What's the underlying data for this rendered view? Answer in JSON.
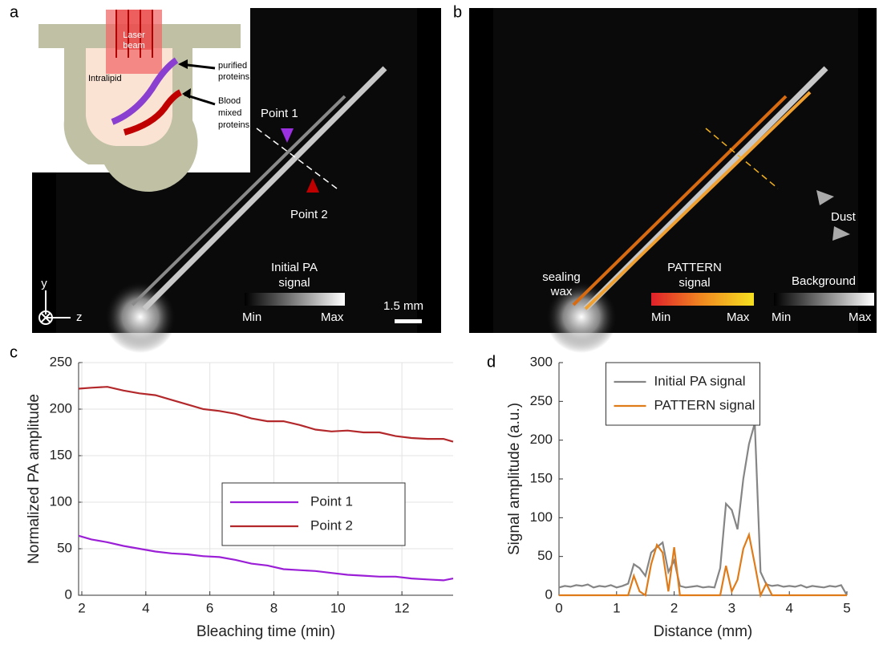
{
  "panel_labels": [
    "a",
    "b",
    "c",
    "d"
  ],
  "panel_a": {
    "inset": {
      "laser_beam": [
        "Laser",
        "beam"
      ],
      "intralipid": "Intralipid",
      "purified_proteins": [
        "purified",
        "proteins"
      ],
      "blood_mixed_proteins": [
        "Blood",
        "mixed",
        "proteins"
      ]
    },
    "point_1": "Point 1",
    "point_2": "Point 2",
    "colorbar_title": [
      "Initial PA",
      "signal"
    ],
    "colorbar_min": "Min",
    "colorbar_max": "Max",
    "scale_bar": "1.5 mm",
    "axis_y": "y",
    "axis_z": "z"
  },
  "panel_b": {
    "sealing_wax": [
      "sealing",
      "wax"
    ],
    "pattern_title": [
      "PATTERN",
      "signal"
    ],
    "pattern_min": "Min",
    "pattern_max": "Max",
    "background_title": "Background",
    "background_min": "Min",
    "background_max": "Max",
    "dust": "Dust"
  },
  "chart_data": [
    {
      "type": "line",
      "xlabel": "Bleaching time (min)",
      "ylabel": "Normalized PA amplitude",
      "x": [
        1.9,
        2.3,
        2.8,
        3.3,
        3.8,
        4.3,
        4.8,
        5.3,
        5.8,
        6.3,
        6.8,
        7.3,
        7.8,
        8.3,
        8.8,
        9.3,
        9.8,
        10.3,
        10.8,
        11.3,
        11.8,
        12.3,
        12.8,
        13.3,
        13.6
      ],
      "series": [
        {
          "name": "Point 1",
          "color": "#9b1fd6",
          "values": [
            64,
            60,
            57,
            53,
            50,
            47,
            45,
            44,
            42,
            41,
            38,
            34,
            32,
            28,
            27,
            26,
            24,
            22,
            21,
            20,
            20,
            18,
            17,
            16,
            18
          ]
        },
        {
          "name": "Point 2",
          "color": "#b3282b",
          "values": [
            222,
            223,
            224,
            220,
            217,
            215,
            210,
            205,
            200,
            198,
            195,
            190,
            187,
            187,
            183,
            178,
            176,
            177,
            175,
            175,
            171,
            169,
            168,
            168,
            165
          ]
        }
      ],
      "xlim": [
        1.9,
        13.6
      ],
      "xticks": [
        2,
        4,
        6,
        8,
        10,
        12
      ],
      "ylim": [
        0,
        250
      ],
      "yticks": [
        0,
        50,
        100,
        150,
        200,
        250
      ],
      "grid": true,
      "legend": "center right"
    },
    {
      "type": "line",
      "xlabel": "Distance (mm)",
      "ylabel": "Signal amplitude (a.u.)",
      "x": [
        0,
        0.1,
        0.2,
        0.3,
        0.4,
        0.5,
        0.6,
        0.7,
        0.8,
        0.9,
        1.0,
        1.1,
        1.2,
        1.3,
        1.4,
        1.5,
        1.6,
        1.7,
        1.8,
        1.9,
        2.0,
        2.1,
        2.2,
        2.3,
        2.4,
        2.5,
        2.6,
        2.7,
        2.8,
        2.9,
        3.0,
        3.1,
        3.2,
        3.3,
        3.4,
        3.5,
        3.6,
        3.7,
        3.8,
        3.9,
        4.0,
        4.1,
        4.2,
        4.3,
        4.4,
        4.5,
        4.6,
        4.7,
        4.8,
        4.9,
        5.0
      ],
      "series": [
        {
          "name": "Initial PA signal",
          "color": "#858585",
          "values": [
            10,
            12,
            11,
            13,
            12,
            14,
            10,
            12,
            11,
            13,
            10,
            12,
            15,
            40,
            35,
            25,
            55,
            62,
            68,
            30,
            45,
            12,
            10,
            11,
            12,
            10,
            11,
            10,
            35,
            118,
            110,
            85,
            150,
            195,
            222,
            30,
            14,
            12,
            13,
            11,
            12,
            11,
            13,
            10,
            12,
            11,
            10,
            12,
            11,
            13,
            0
          ]
        },
        {
          "name": "PATTERN signal",
          "color": "#e07b1a",
          "values": [
            0,
            0,
            0,
            0,
            0,
            0,
            0,
            0,
            0,
            0,
            0,
            0,
            0,
            25,
            5,
            0,
            40,
            65,
            55,
            5,
            62,
            0,
            0,
            0,
            0,
            0,
            0,
            0,
            0,
            38,
            5,
            20,
            60,
            78,
            40,
            0,
            15,
            0,
            0,
            0,
            0,
            0,
            0,
            0,
            0,
            0,
            0,
            0,
            0,
            0,
            0
          ]
        }
      ],
      "xlim": [
        0,
        5
      ],
      "xticks": [
        0,
        1,
        2,
        3,
        4,
        5
      ],
      "ylim": [
        0,
        300
      ],
      "yticks": [
        0,
        50,
        100,
        150,
        200,
        250,
        300
      ],
      "grid": false,
      "legend": "upper center"
    }
  ]
}
